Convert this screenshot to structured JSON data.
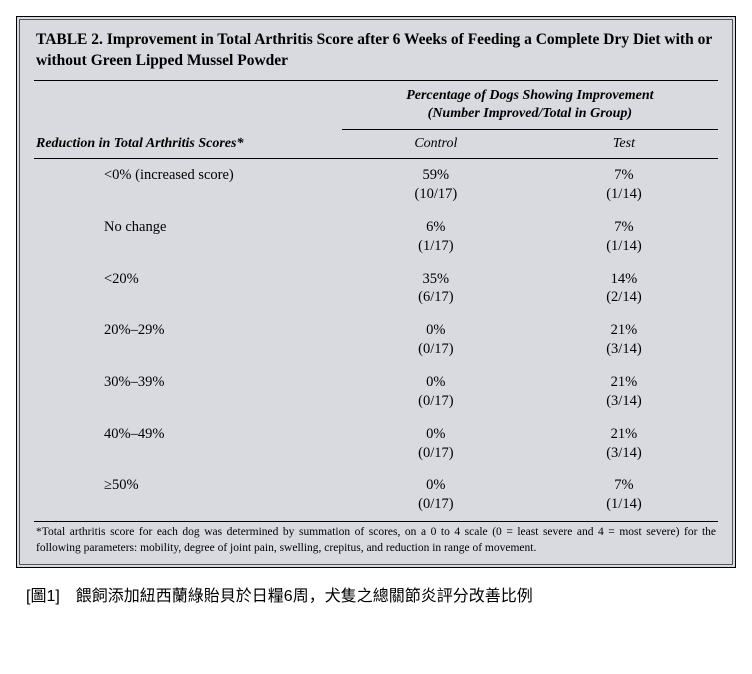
{
  "frame": {
    "background": "#d8dae0",
    "border_color": "#000000"
  },
  "title": "TABLE 2. Improvement in Total Arthritis Score after 6 Weeks of Feeding a Complete Dry Diet with or without Green Lipped Mussel Powder",
  "row_header_label": "Reduction in Total Arthritis Scores*",
  "group_header_line1": "Percentage of Dogs Showing Improvement",
  "group_header_line2": "(Number Improved/Total in Group)",
  "columns": {
    "control": "Control",
    "test": "Test"
  },
  "rows": [
    {
      "category": "<0% (increased score)",
      "control_pct": "59%",
      "control_frac": "(10/17)",
      "test_pct": "7%",
      "test_frac": "(1/14)"
    },
    {
      "category": "No change",
      "control_pct": "6%",
      "control_frac": "(1/17)",
      "test_pct": "7%",
      "test_frac": "(1/14)"
    },
    {
      "category": "<20%",
      "control_pct": "35%",
      "control_frac": "(6/17)",
      "test_pct": "14%",
      "test_frac": "(2/14)"
    },
    {
      "category": "20%–29%",
      "control_pct": "0%",
      "control_frac": "(0/17)",
      "test_pct": "21%",
      "test_frac": "(3/14)"
    },
    {
      "category": "30%–39%",
      "control_pct": "0%",
      "control_frac": "(0/17)",
      "test_pct": "21%",
      "test_frac": "(3/14)"
    },
    {
      "category": "40%–49%",
      "control_pct": "0%",
      "control_frac": "(0/17)",
      "test_pct": "21%",
      "test_frac": "(3/14)"
    },
    {
      "category": "≥50%",
      "control_pct": "0%",
      "control_frac": "(0/17)",
      "test_pct": "7%",
      "test_frac": "(1/14)"
    }
  ],
  "footnote": "*Total arthritis score for each dog was determined by summation of scores, on a 0 to 4 scale (0 = least severe and 4 = most severe) for the following parameters: mobility, degree of joint pain, swelling, crepitus, and reduction in range of movement.",
  "caption": "[圖1]　餵飼添加紐西蘭綠貽貝於日糧6周，犬隻之總關節炎評分改善比例"
}
